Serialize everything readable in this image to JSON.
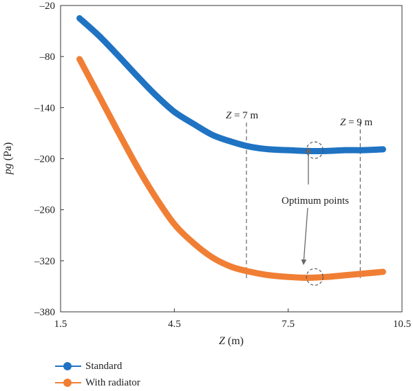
{
  "chart_data": {
    "type": "line",
    "xlabel": "Z (m)",
    "ylabel": "pg (Pa)",
    "xlim": [
      1.5,
      10.5
    ],
    "ylim": [
      -380,
      -20
    ],
    "xticks": [
      1.5,
      4.5,
      7.5,
      10.5
    ],
    "yticks": [
      -20,
      -80,
      -140,
      -200,
      -260,
      -320,
      -380
    ],
    "xtick_labels": [
      "1.5",
      "4.5",
      "7.5",
      "10.5"
    ],
    "ytick_labels": [
      "–20",
      "–80",
      "–140",
      "–200",
      "–260",
      "–320",
      "–380"
    ],
    "grid": false,
    "legend_position": "below",
    "series": [
      {
        "name": "Standard",
        "color": "#1f73c2",
        "x": [
          2.0,
          2.5,
          3.0,
          3.5,
          4.0,
          4.5,
          5.0,
          5.5,
          6.0,
          6.5,
          7.0,
          7.5,
          8.0,
          8.5,
          9.0,
          9.5,
          10.0
        ],
        "y": [
          -35,
          -55,
          -78,
          -102,
          -125,
          -145,
          -159,
          -172,
          -180,
          -186,
          -189,
          -190,
          -191,
          -191,
          -190,
          -190,
          -189
        ]
      },
      {
        "name": "With radiator",
        "color": "#f07f35",
        "x": [
          2.0,
          2.5,
          3.0,
          3.5,
          4.0,
          4.5,
          5.0,
          5.5,
          6.0,
          6.5,
          7.0,
          7.5,
          8.0,
          8.5,
          9.0,
          9.5,
          10.0
        ],
        "y": [
          -83,
          -125,
          -167,
          -208,
          -245,
          -277,
          -299,
          -316,
          -327,
          -333,
          -337,
          -339,
          -340,
          -339,
          -337,
          -335,
          -333
        ]
      }
    ],
    "annotations": {
      "z7_label": {
        "prefix": "Z",
        "suffix": " = 7 m"
      },
      "z9_label": {
        "prefix": "Z",
        "suffix": " = 9 m"
      },
      "optimum_label": "Optimum points",
      "vline_x": [
        6.4,
        9.4
      ],
      "optimum_x": 8.2,
      "optimum_y": [
        -190,
        -339
      ]
    }
  }
}
